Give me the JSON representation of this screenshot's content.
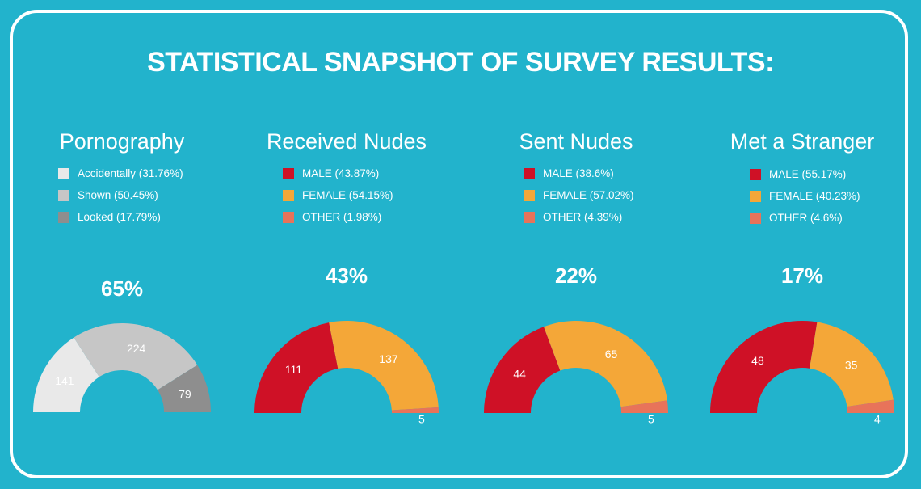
{
  "title": "STATISTICAL SNAPSHOT OF SURVEY RESULTS:",
  "colors": {
    "background": "#22b3cc",
    "text": "#ffffff"
  },
  "chart_data": [
    {
      "type": "pie",
      "title": "Pornography",
      "headline": "65%",
      "legend": [
        {
          "label": "Accidentally (31.76%)",
          "color": "#e9e9e9"
        },
        {
          "label": "Shown (50.45%)",
          "color": "#c6c6c6"
        },
        {
          "label": "Looked (17.79%)",
          "color": "#8e8e8e"
        }
      ],
      "categories": [
        "Accidentally",
        "Shown",
        "Looked"
      ],
      "values": [
        141,
        224,
        79
      ],
      "value_labels": [
        "141",
        "224",
        "79"
      ]
    },
    {
      "type": "pie",
      "title": "Received Nudes",
      "headline": "43%",
      "legend": [
        {
          "label": "MALE (43.87%)",
          "color": "#cf1126"
        },
        {
          "label": "FEMALE (54.15%)",
          "color": "#f4a738"
        },
        {
          "label": "OTHER (1.98%)",
          "color": "#e8735a"
        }
      ],
      "categories": [
        "MALE",
        "FEMALE",
        "OTHER"
      ],
      "values": [
        111,
        137,
        5
      ],
      "value_labels": [
        "111",
        "137",
        "5"
      ]
    },
    {
      "type": "pie",
      "title": "Sent Nudes",
      "headline": "22%",
      "legend": [
        {
          "label": "MALE (38.6%)",
          "color": "#cf1126"
        },
        {
          "label": "FEMALE (57.02%)",
          "color": "#f4a738"
        },
        {
          "label": "OTHER (4.39%)",
          "color": "#e8735a"
        }
      ],
      "categories": [
        "MALE",
        "FEMALE",
        "OTHER"
      ],
      "values": [
        44,
        65,
        5
      ],
      "value_labels": [
        "44",
        "65",
        "5"
      ]
    },
    {
      "type": "pie",
      "title": "Met a Stranger",
      "headline": "17%",
      "legend": [
        {
          "label": "MALE (55.17%)",
          "color": "#cf1126"
        },
        {
          "label": "FEMALE (40.23%)",
          "color": "#f4a738"
        },
        {
          "label": "OTHER (4.6%)",
          "color": "#e8735a"
        }
      ],
      "categories": [
        "MALE",
        "FEMALE",
        "OTHER"
      ],
      "values": [
        48,
        35,
        4
      ],
      "value_labels": [
        "48",
        "35",
        "4"
      ]
    }
  ]
}
